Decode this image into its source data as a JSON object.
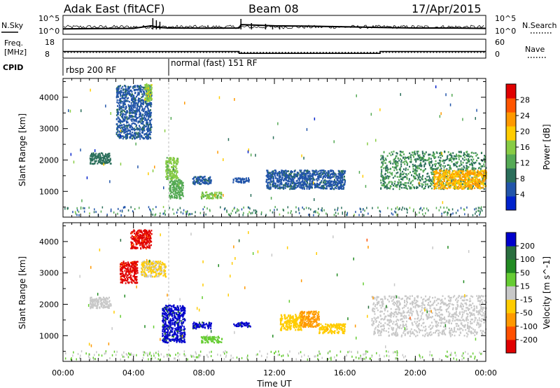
{
  "header": {
    "station": "Adak East (fitACF)",
    "beam": "Beam 08",
    "date": "17/Apr/2015"
  },
  "sky_panel": {
    "left_label": "N.Sky",
    "right_label": "N.Search",
    "left_ticks": [
      "10^5",
      "10^0"
    ],
    "right_ticks": [
      "10^5",
      "10^0"
    ]
  },
  "freq_panel": {
    "left_label_line1": "Freq.",
    "left_label_line2": "[MHz]",
    "right_label": "Nave",
    "left_ticks": [
      "18",
      "8"
    ],
    "right_ticks": [
      "60",
      "0"
    ]
  },
  "cpid_panel": {
    "label": "CPID",
    "modes": [
      {
        "label": "rbsp 200 RF",
        "start_hour": 0,
        "end_hour": 6
      },
      {
        "label": "normal (fast) 151 RF",
        "start_hour": 6,
        "end_hour": 24
      }
    ]
  },
  "x_axis": {
    "label": "Time UT",
    "ticks": [
      "00:00",
      "04:00",
      "08:00",
      "12:00",
      "16:00",
      "20:00",
      "00:00"
    ]
  },
  "colors": {
    "velocity": [
      "#e00000",
      "#ff5000",
      "#ff9900",
      "#ffcc00",
      "#c8c8c8",
      "#66cc33",
      "#228b22",
      "#2a6e3f",
      "#0000cc"
    ],
    "power": [
      "#0022cc",
      "#2255aa",
      "#2a6e5a",
      "#55aa55",
      "#88cc44",
      "#ffcc00",
      "#ff9900",
      "#ff5500",
      "#e00000"
    ]
  },
  "chart_data": [
    {
      "type": "line",
      "title": "",
      "ylabel": "N.Sky",
      "x_range_hours": [
        0,
        24
      ],
      "y_scale": "log",
      "series": [
        {
          "name": "N.Sky",
          "x": [
            0,
            2,
            4,
            5,
            5.5,
            6,
            8,
            10,
            10.1,
            12,
            14,
            16,
            18,
            20,
            22,
            24
          ],
          "y": [
            20,
            25,
            30,
            200,
            60,
            40,
            35,
            40,
            500,
            200,
            150,
            100,
            60,
            40,
            40,
            30
          ]
        }
      ]
    },
    {
      "type": "line",
      "title": "",
      "ylabel": "Freq. [MHz]",
      "x_range_hours": [
        0,
        24
      ],
      "y_range": [
        8,
        18
      ],
      "series": [
        {
          "name": "Freq.",
          "x": [
            0,
            10,
            10,
            18,
            18,
            24
          ],
          "y": [
            11.5,
            11.5,
            10.4,
            10.4,
            11.5,
            11.5
          ]
        },
        {
          "name": "Nave",
          "x": [
            0,
            24
          ],
          "y": [
            18,
            18
          ]
        }
      ]
    },
    {
      "type": "heatmap",
      "title": "",
      "xlabel": "Time UT",
      "ylabel": "Slant Range [km]",
      "colorbar_label": "Power [dB]",
      "colorbar_ticks": [
        4,
        8,
        12,
        16,
        20,
        24,
        28
      ],
      "colorbar_range": [
        0,
        30
      ],
      "y_ticks": [
        1000,
        2000,
        3000,
        4000
      ],
      "y_range": [
        180,
        4600
      ],
      "x_range_hours": [
        0,
        24
      ],
      "regions": [
        {
          "x": [
            1.5,
            2.7
          ],
          "y": [
            1900,
            2250
          ],
          "value": 8
        },
        {
          "x": [
            3.0,
            5.0
          ],
          "y": [
            2700,
            4400
          ],
          "value": 6
        },
        {
          "x": [
            4.6,
            5.0
          ],
          "y": [
            3900,
            4450
          ],
          "value": 16
        },
        {
          "x": [
            5.8,
            6.5
          ],
          "y": [
            1400,
            2100
          ],
          "value": 14
        },
        {
          "x": [
            6.0,
            6.8
          ],
          "y": [
            800,
            1400
          ],
          "value": 12
        },
        {
          "x": [
            7.3,
            8.4
          ],
          "y": [
            1250,
            1500
          ],
          "value": 6
        },
        {
          "x": [
            7.8,
            9.0
          ],
          "y": [
            800,
            1000
          ],
          "value": 14
        },
        {
          "x": [
            9.6,
            10.6
          ],
          "y": [
            1300,
            1450
          ],
          "value": 5
        },
        {
          "x": [
            11.5,
            16.0
          ],
          "y": [
            1100,
            1700
          ],
          "value": 6
        },
        {
          "x": [
            18.0,
            24.0
          ],
          "y": [
            1100,
            2300
          ],
          "value": 10
        },
        {
          "x": [
            21.0,
            24.0
          ],
          "y": [
            1100,
            1700
          ],
          "value": 20
        }
      ]
    },
    {
      "type": "heatmap",
      "title": "",
      "xlabel": "Time UT",
      "ylabel": "Slant Range [km]",
      "colorbar_label": "Velocity [m s^-1]",
      "colorbar_ticks": [
        "-200",
        "-100",
        "-50",
        "-15",
        "15",
        "50",
        "100",
        "200"
      ],
      "colorbar_range": [
        -250,
        250
      ],
      "y_ticks": [
        1000,
        2000,
        3000,
        4000
      ],
      "y_range": [
        180,
        4600
      ],
      "x_range_hours": [
        0,
        24
      ],
      "regions": [
        {
          "x": [
            1.5,
            2.7
          ],
          "y": [
            1900,
            2250
          ],
          "value": 0
        },
        {
          "x": [
            3.2,
            4.2
          ],
          "y": [
            2700,
            3400
          ],
          "value": -200
        },
        {
          "x": [
            3.8,
            5.0
          ],
          "y": [
            3800,
            4400
          ],
          "value": -200
        },
        {
          "x": [
            4.4,
            5.8
          ],
          "y": [
            2900,
            3400
          ],
          "value": -30
        },
        {
          "x": [
            5.6,
            6.9
          ],
          "y": [
            800,
            2000
          ],
          "value": 200
        },
        {
          "x": [
            7.3,
            8.4
          ],
          "y": [
            1250,
            1450
          ],
          "value": 200
        },
        {
          "x": [
            7.8,
            9.0
          ],
          "y": [
            800,
            1000
          ],
          "value": 40
        },
        {
          "x": [
            9.6,
            10.6
          ],
          "y": [
            1300,
            1450
          ],
          "value": 200
        },
        {
          "x": [
            12.3,
            13.5
          ],
          "y": [
            1200,
            1700
          ],
          "value": -60
        },
        {
          "x": [
            13.4,
            14.5
          ],
          "y": [
            1300,
            1800
          ],
          "value": -90
        },
        {
          "x": [
            14.5,
            16.0
          ],
          "y": [
            1100,
            1400
          ],
          "value": -40
        },
        {
          "x": [
            17.5,
            24.0
          ],
          "y": [
            1000,
            2300
          ],
          "value": 0
        }
      ]
    }
  ]
}
